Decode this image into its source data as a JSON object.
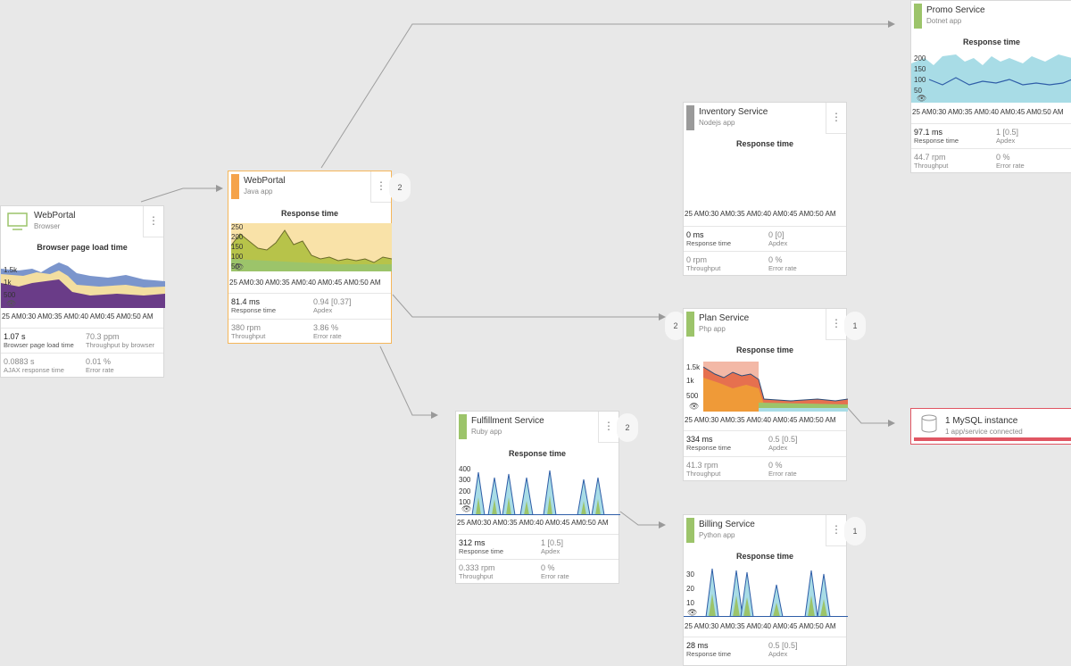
{
  "colors": {
    "accent_java": "#f5a34a",
    "accent_ruby": "#9cc46a",
    "accent_node": "#9a9a9a",
    "accent_dotnet": "#9cc46a",
    "accent_php": "#9cc46a",
    "accent_python": "#9cc46a",
    "error_bar": "#e05663",
    "selected_border": "#f5b65a"
  },
  "time_ticks": [
    "25 AM",
    "0:30 AM",
    "0:35 AM",
    "0:40 AM",
    "0:45 AM",
    "0:50 AM"
  ],
  "nodes": {
    "browser": {
      "name": "WebPortal",
      "type": "Browser",
      "icon": "monitor-icon",
      "chart_title": "Browser page load time",
      "y_ticks": [
        "1.5k",
        "1k",
        "500"
      ],
      "m1_value": "1.07 s",
      "m1_label": "Browser page load time",
      "m2_value": "70.3 ppm",
      "m2_label": "Throughput by browser",
      "m3_value": "0.0883 s",
      "m3_label": "AJAX response time",
      "m4_value": "0.01 %",
      "m4_label": "Error rate"
    },
    "webportal": {
      "name": "WebPortal",
      "type": "Java app",
      "chart_title": "Response time",
      "y_ticks": [
        "250",
        "200",
        "150",
        "100",
        "50"
      ],
      "m1_value": "81.4 ms",
      "m1_label": "Response time",
      "m2_value": "0.94 [0.37]",
      "m2_label": "Apdex",
      "m3_value": "380 rpm",
      "m3_label": "Throughput",
      "m4_value": "3.86 %",
      "m4_label": "Error rate",
      "badge": "2"
    },
    "promo": {
      "name": "Promo Service",
      "type": "Dotnet app",
      "chart_title": "Response time",
      "y_ticks": [
        "200",
        "150",
        "100",
        "50"
      ],
      "m1_value": "97.1 ms",
      "m1_label": "Response time",
      "m2_value": "1 [0.5]",
      "m2_label": "Apdex",
      "m3_value": "44.7 rpm",
      "m3_label": "Throughput",
      "m4_value": "0 %",
      "m4_label": "Error rate"
    },
    "inventory": {
      "name": "Inventory Service",
      "type": "Nodejs app",
      "chart_title": "Response time",
      "m1_value": "0 ms",
      "m1_label": "Response time",
      "m2_value": "0 [0]",
      "m2_label": "Apdex",
      "m3_value": "0 rpm",
      "m3_label": "Throughput",
      "m4_value": "0 %",
      "m4_label": "Error rate"
    },
    "plan": {
      "name": "Plan Service",
      "type": "Php app",
      "chart_title": "Response time",
      "y_ticks": [
        "1.5k",
        "1k",
        "500"
      ],
      "m1_value": "334 ms",
      "m1_label": "Response time",
      "m2_value": "0.5 [0.5]",
      "m2_label": "Apdex",
      "m3_value": "41.3 rpm",
      "m3_label": "Throughput",
      "m4_value": "0 %",
      "m4_label": "Error rate",
      "badge_left": "2",
      "badge_right": "1"
    },
    "fulfillment": {
      "name": "Fulfillment Service",
      "type": "Ruby app",
      "chart_title": "Response time",
      "y_ticks": [
        "400",
        "300",
        "200",
        "100"
      ],
      "m1_value": "312 ms",
      "m1_label": "Response time",
      "m2_value": "1 [0.5]",
      "m2_label": "Apdex",
      "m3_value": "0.333 rpm",
      "m3_label": "Throughput",
      "m4_value": "0 %",
      "m4_label": "Error rate",
      "badge": "2"
    },
    "billing": {
      "name": "Billing Service",
      "type": "Python app",
      "chart_title": "Response time",
      "y_ticks": [
        "30",
        "20",
        "10"
      ],
      "m1_value": "28 ms",
      "m1_label": "Response time",
      "m2_value": "0.5 [0.5]",
      "m2_label": "Apdex",
      "badge": "1"
    },
    "mysql": {
      "name": "1 MySQL instance",
      "sub": "1 app/service connected",
      "icon": "database-icon"
    }
  }
}
